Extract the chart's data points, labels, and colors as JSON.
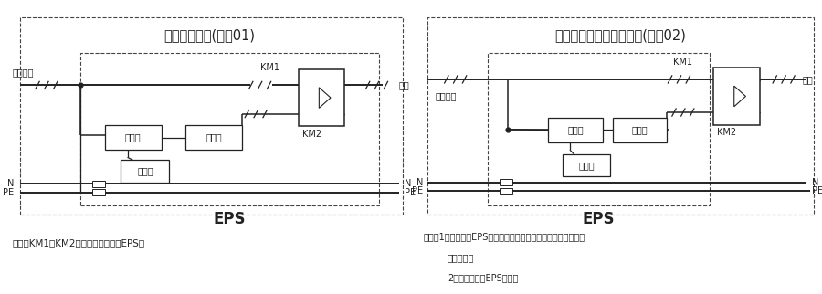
{
  "title1": "单电源原理图(编号01)",
  "title2": "做第二回路双回路原理图(编号02)",
  "eps_label": "EPS",
  "note1": "说明：KM1、KM2为电气机械互锁在EPS内",
  "note2_line1": "说明：1、此种情况EPS的逆变器在关机状态在无市电时立即开机",
  "note2_line2": "逆变输出。",
  "note2_line3": "2、互投装置在EPS之外。",
  "label_input": "三相输入",
  "label_output": "输出",
  "label_charger": "充电器",
  "label_inverter": "逆变器",
  "label_battery": "电池组",
  "label_KM1": "KM1",
  "label_KM2": "KM2",
  "label_N": "N",
  "label_PE": "PE",
  "line_color": "#222222",
  "bg_color": "#ffffff",
  "dashed_color": "#444444"
}
